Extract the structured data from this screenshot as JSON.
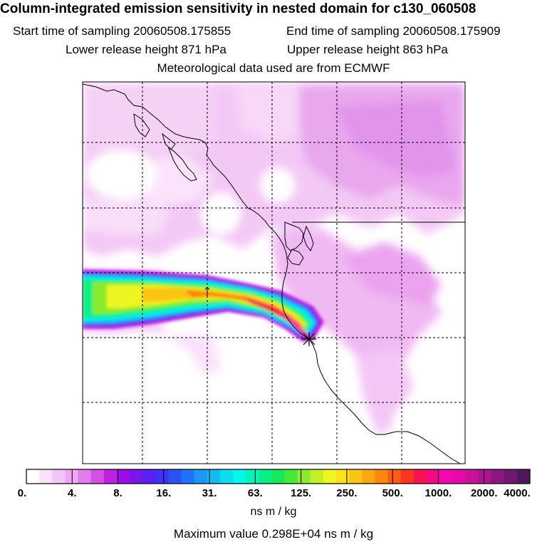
{
  "header": {
    "title": "Column-integrated emission sensitivity in nested domain for c130_060508",
    "start_time": "Start time of sampling 20060508.175855",
    "end_time": "End time of sampling 20060508.175909",
    "lower_release": "Lower release height  871 hPa",
    "upper_release": "Upper release height  863 hPa",
    "met_data": "Meteorological data used are from ECMWF"
  },
  "legend": {
    "tick_labels": [
      "0.",
      "4.",
      "8.",
      "16.",
      "31.",
      "63.",
      "125.",
      "250.",
      "500.",
      "1000.",
      "2000.",
      "4000."
    ],
    "colors": [
      "#ffffff",
      "#fbe0fb",
      "#f6c5f7",
      "#f0a6f2",
      "#e27cec",
      "#d44fe6",
      "#c020e2",
      "#9a0de6",
      "#7a16ec",
      "#5a1ff2",
      "#3f32f7",
      "#2a52f7",
      "#2073f7",
      "#1b97f5",
      "#13b9f1",
      "#0bdcee",
      "#04f7e8",
      "#05f3b8",
      "#0aee86",
      "#17e85a",
      "#46e83a",
      "#8aeb2f",
      "#c4ef28",
      "#edf522",
      "#fae21c",
      "#fbc516",
      "#fca612",
      "#fc8510",
      "#fc5d14",
      "#fc3422",
      "#fa1353",
      "#f50985",
      "#f507b0",
      "#e60aa8",
      "#c9129a",
      "#ad158c",
      "#8d1780",
      "#6d1970",
      "#4e1a5c"
    ],
    "units": "ns m / kg"
  },
  "footer": {
    "max_value": "Maximum value  0.298E+04 ns m / kg"
  }
}
